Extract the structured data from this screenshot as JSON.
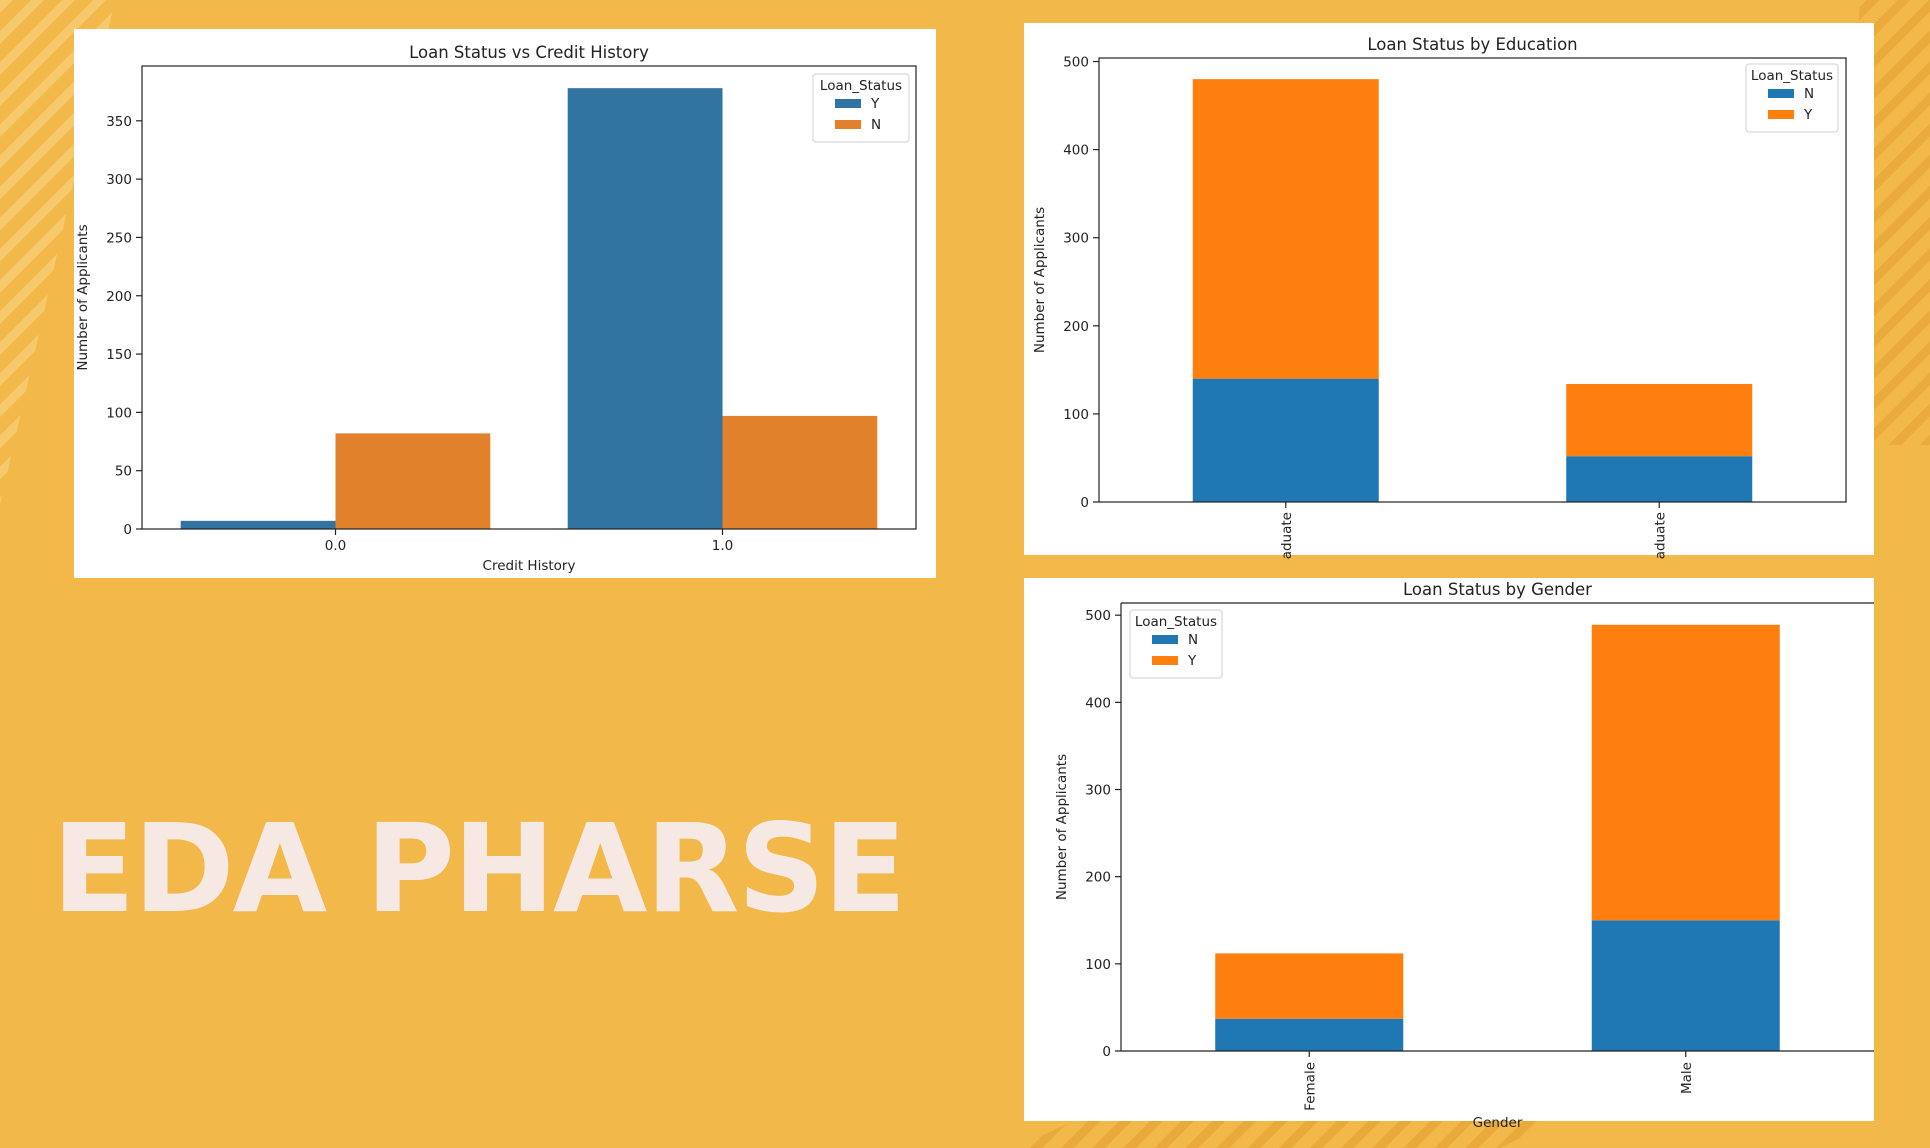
{
  "slide": {
    "title": "EDA PHARSE",
    "colors": {
      "background": "#F3B84A",
      "stripes": "#F7CD72",
      "stripes_dark": "#E9A739",
      "title": "#F6E9E4",
      "panel": "#FFFFFF"
    }
  },
  "chart_data": [
    {
      "type": "bar",
      "title": "Loan Status vs Credit History",
      "xlabel": "Credit History",
      "ylabel": "Number of Applicants",
      "categories": [
        "0.0",
        "1.0"
      ],
      "series": [
        {
          "name": "Y",
          "values": [
            7,
            378
          ],
          "color": "#3274A1"
        },
        {
          "name": "N",
          "values": [
            82,
            97
          ],
          "color": "#E1812C"
        }
      ],
      "ylim": [
        0,
        397
      ],
      "yticks": [
        0,
        50,
        100,
        150,
        200,
        250,
        300,
        350
      ],
      "legend": {
        "title": "Loan_Status",
        "placement": "top-right"
      },
      "grid": false
    },
    {
      "type": "bar",
      "stacked": true,
      "title": "Loan Status by Education",
      "xlabel": "",
      "ylabel": "Number of Applicants",
      "categories": [
        "aduate",
        "aduate"
      ],
      "series": [
        {
          "name": "N",
          "values": [
            140,
            52
          ],
          "color": "#1F77B4"
        },
        {
          "name": "Y",
          "values": [
            340,
            82
          ],
          "color": "#FF7F0E"
        }
      ],
      "ylim": [
        0,
        504
      ],
      "yticks": [
        0,
        100,
        200,
        300,
        400,
        500
      ],
      "legend": {
        "title": "Loan_Status",
        "placement": "top-right"
      },
      "grid": false
    },
    {
      "type": "bar",
      "stacked": true,
      "title": "Loan Status by Gender",
      "xlabel": "Gender",
      "ylabel": "Number of Applicants",
      "categories": [
        "Female",
        "Male"
      ],
      "series": [
        {
          "name": "N",
          "values": [
            37,
            150
          ],
          "color": "#1F77B4"
        },
        {
          "name": "Y",
          "values": [
            75,
            339
          ],
          "color": "#FF7F0E"
        }
      ],
      "ylim": [
        0,
        514
      ],
      "yticks": [
        0,
        100,
        200,
        300,
        400,
        500
      ],
      "legend": {
        "title": "Loan_Status",
        "placement": "top-left"
      },
      "grid": false
    }
  ]
}
